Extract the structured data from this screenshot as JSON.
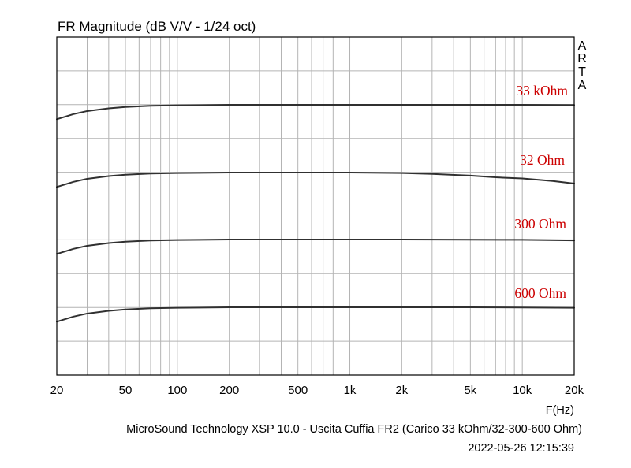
{
  "chart_data": {
    "type": "line",
    "title": "FR Magnitude (dB V/V - 1/24 oct)",
    "xlabel": "F(Hz)",
    "x_scale": "log",
    "xlim": [
      20,
      20000
    ],
    "x_ticks": [
      20,
      50,
      100,
      200,
      500,
      1000,
      2000,
      5000,
      10000,
      20000
    ],
    "x_tick_labels": [
      "20",
      "50",
      "100",
      "200",
      "500",
      "1k",
      "2k",
      "5k",
      "10k",
      "20k"
    ],
    "y_tick_labels": [],
    "grid": true,
    "brand": [
      "A",
      "R",
      "T",
      "A"
    ],
    "footer": "MicroSound Technology XSP 10.0 - Uscita Cuffia FR2 (Carico 33 kOhm/32-300-600 Ohm)",
    "timestamp": "2022-05-26  12:15:39",
    "colors": {
      "curve": "#303030",
      "label": "#cc0000",
      "grid": "#b4b4b4",
      "axes": "#000000"
    },
    "series": [
      {
        "name": "33 kOhm",
        "x": [
          20,
          25,
          30,
          40,
          50,
          70,
          100,
          200,
          500,
          1000,
          2000,
          5000,
          10000,
          20000
        ],
        "y": [
          -0.85,
          -0.55,
          -0.37,
          -0.21,
          -0.13,
          -0.06,
          -0.03,
          0,
          0,
          0,
          0,
          0,
          0,
          -0.01
        ]
      },
      {
        "name": "32 Ohm",
        "x": [
          20,
          25,
          30,
          40,
          50,
          70,
          100,
          200,
          500,
          1000,
          2000,
          3000,
          5000,
          7000,
          10000,
          15000,
          20000
        ],
        "y": [
          -0.85,
          -0.55,
          -0.37,
          -0.21,
          -0.13,
          -0.06,
          -0.03,
          0,
          0,
          0,
          -0.03,
          -0.08,
          -0.18,
          -0.28,
          -0.35,
          -0.5,
          -0.65
        ]
      },
      {
        "name": "300 Ohm",
        "x": [
          20,
          25,
          30,
          40,
          50,
          70,
          100,
          200,
          500,
          1000,
          2000,
          5000,
          10000,
          20000
        ],
        "y": [
          -0.85,
          -0.55,
          -0.37,
          -0.21,
          -0.13,
          -0.06,
          -0.03,
          0,
          0,
          0,
          0,
          -0.01,
          -0.02,
          -0.05
        ]
      },
      {
        "name": "600 Ohm",
        "x": [
          20,
          25,
          30,
          40,
          50,
          70,
          100,
          200,
          500,
          1000,
          2000,
          5000,
          10000,
          20000
        ],
        "y": [
          -0.85,
          -0.55,
          -0.37,
          -0.21,
          -0.13,
          -0.06,
          -0.03,
          0,
          0,
          0,
          0,
          0,
          -0.01,
          -0.03
        ]
      }
    ]
  }
}
